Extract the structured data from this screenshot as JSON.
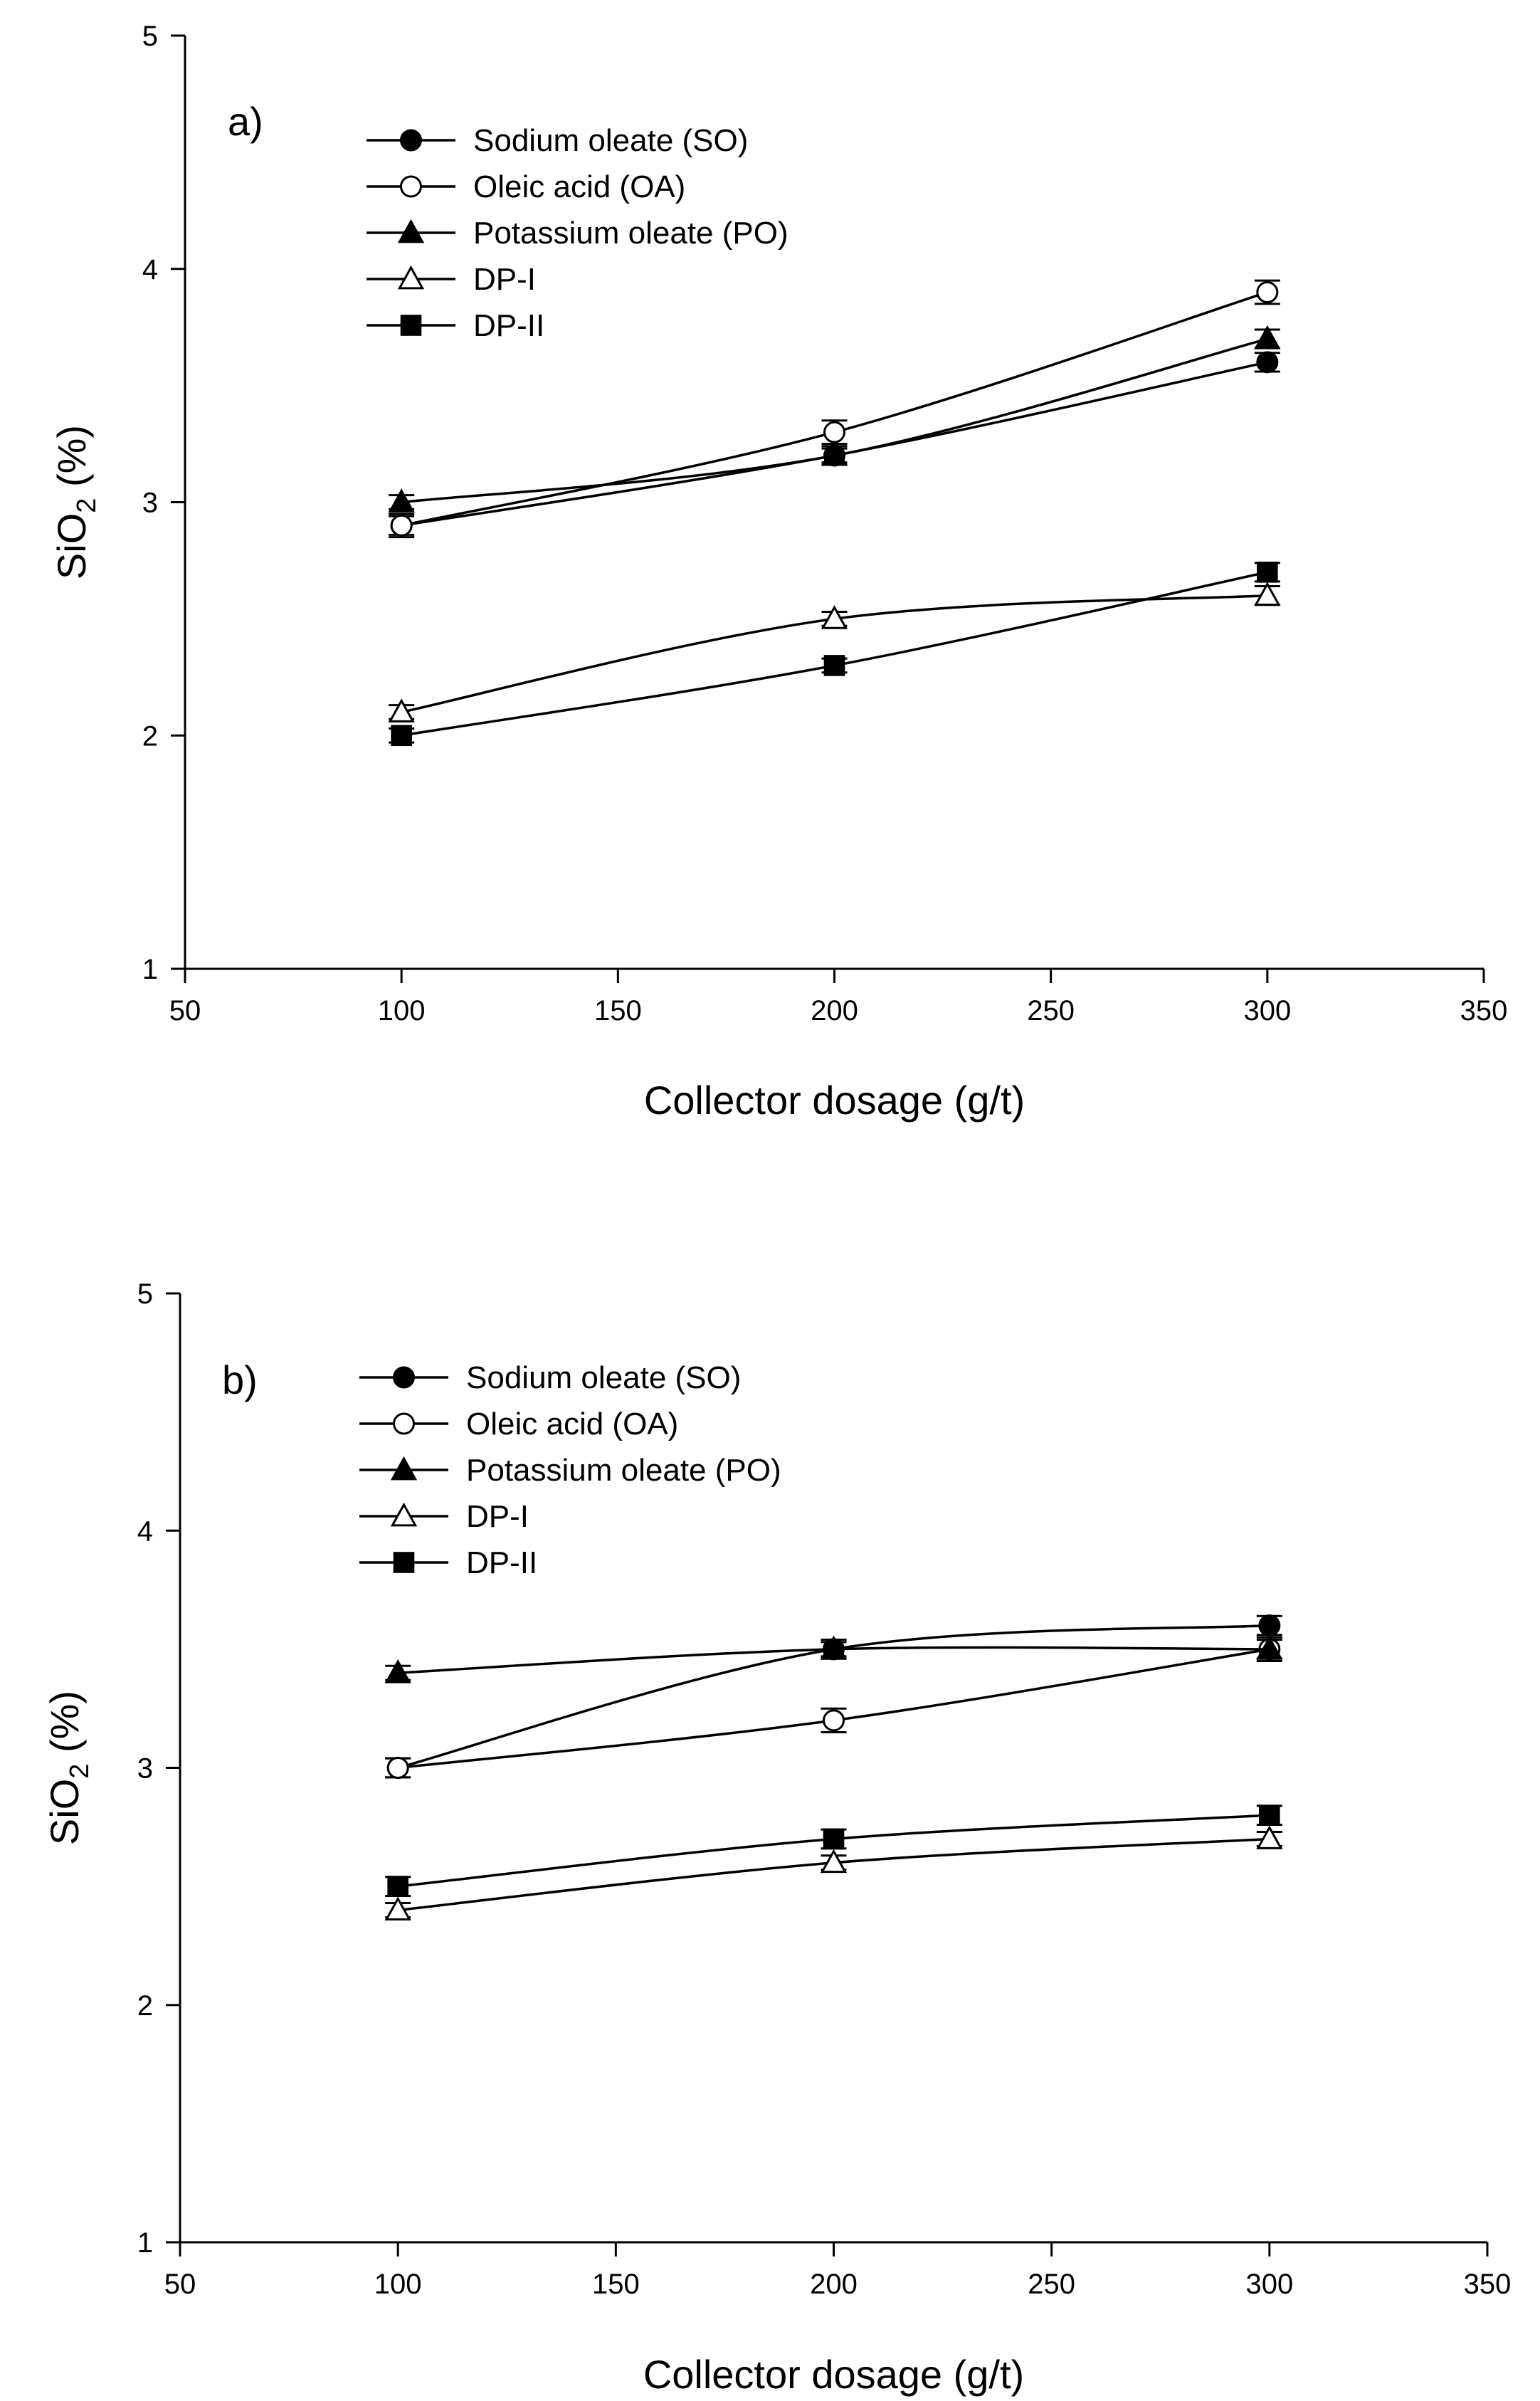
{
  "figure": {
    "panel_a_label": "a)",
    "panel_b_label": "b)"
  },
  "colors": {
    "line": "#000000",
    "background": "#ffffff",
    "filled_marker": "#000000",
    "open_marker_fill": "#ffffff"
  },
  "legend_markers": {
    "SO": "filled-circle",
    "OA": "open-circle",
    "PO": "filled-triangle",
    "DP-I": "open-triangle",
    "DP-II": "filled-square"
  },
  "chart_data": [
    {
      "type": "line",
      "panel": "a)",
      "title": "",
      "xlabel": "Collector dosage (g/t)",
      "ylabel_main": "SiO",
      "ylabel_sub": "2",
      "ylabel_suffix": " (%)",
      "xlim": [
        50,
        350
      ],
      "ylim": [
        1,
        5
      ],
      "xticks": [
        50,
        100,
        150,
        200,
        250,
        300,
        350
      ],
      "yticks": [
        1,
        2,
        3,
        4,
        5
      ],
      "grid": false,
      "legend_position": "top-left",
      "x": [
        100,
        200,
        300
      ],
      "series": [
        {
          "key": "SO",
          "name": "Sodium oleate (SO)",
          "marker": "filled-circle",
          "values": [
            2.9,
            3.2,
            3.6
          ],
          "errors": [
            0.04,
            0.04,
            0.04
          ]
        },
        {
          "key": "OA",
          "name": "Oleic acid (OA)",
          "marker": "open-circle",
          "values": [
            2.9,
            3.3,
            3.9
          ],
          "errors": [
            0.05,
            0.05,
            0.05
          ]
        },
        {
          "key": "PO",
          "name": "Potassium oleate (PO)",
          "marker": "filled-triangle",
          "values": [
            3.0,
            3.2,
            3.7
          ],
          "errors": [
            0.03,
            0.03,
            0.04
          ]
        },
        {
          "key": "DP-I",
          "name": "DP-I",
          "marker": "open-triangle",
          "values": [
            2.1,
            2.5,
            2.6
          ],
          "errors": [
            0.03,
            0.03,
            0.04
          ]
        },
        {
          "key": "DP-II",
          "name": "DP-II",
          "marker": "filled-square",
          "values": [
            2.0,
            2.3,
            2.7
          ],
          "errors": [
            0.03,
            0.03,
            0.04
          ]
        }
      ]
    },
    {
      "type": "line",
      "panel": "b)",
      "title": "",
      "xlabel": "Collector dosage (g/t)",
      "ylabel_main": "SiO",
      "ylabel_sub": "2",
      "ylabel_suffix": " (%)",
      "xlim": [
        50,
        350
      ],
      "ylim": [
        1,
        5
      ],
      "xticks": [
        50,
        100,
        150,
        200,
        250,
        300,
        350
      ],
      "yticks": [
        1,
        2,
        3,
        4,
        5
      ],
      "grid": false,
      "legend_position": "top-left",
      "x": [
        100,
        200,
        300
      ],
      "series": [
        {
          "key": "SO",
          "name": "Sodium oleate (SO)",
          "marker": "filled-circle",
          "values": [
            3.0,
            3.5,
            3.6
          ],
          "errors": [
            0.04,
            0.04,
            0.04
          ]
        },
        {
          "key": "OA",
          "name": "Oleic acid (OA)",
          "marker": "open-circle",
          "values": [
            3.0,
            3.2,
            3.5
          ],
          "errors": [
            0.04,
            0.05,
            0.05
          ]
        },
        {
          "key": "PO",
          "name": "Potassium oleate (PO)",
          "marker": "filled-triangle",
          "values": [
            3.4,
            3.5,
            3.5
          ],
          "errors": [
            0.03,
            0.03,
            0.04
          ]
        },
        {
          "key": "DP-I",
          "name": "DP-I",
          "marker": "open-triangle",
          "values": [
            2.4,
            2.6,
            2.7
          ],
          "errors": [
            0.03,
            0.03,
            0.03
          ]
        },
        {
          "key": "DP-II",
          "name": "DP-II",
          "marker": "filled-square",
          "values": [
            2.5,
            2.7,
            2.8
          ],
          "errors": [
            0.04,
            0.04,
            0.04
          ]
        }
      ]
    }
  ]
}
